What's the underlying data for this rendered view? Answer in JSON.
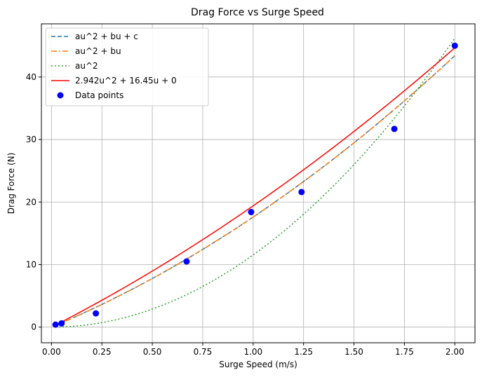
{
  "chart_data": {
    "type": "scatter",
    "title": "Drag Force vs Surge Speed",
    "xlabel": "Surge Speed (m/s)",
    "ylabel": "Drag Force (N)",
    "xlim": [
      -0.05,
      2.1
    ],
    "ylim": [
      -2.5,
      48.5
    ],
    "xticks": [
      0.0,
      0.25,
      0.5,
      0.75,
      1.0,
      1.25,
      1.5,
      1.75,
      2.0
    ],
    "xtick_labels": [
      "0.00",
      "0.25",
      "0.50",
      "0.75",
      "1.00",
      "1.25",
      "1.50",
      "1.75",
      "2.00"
    ],
    "yticks": [
      0,
      10,
      20,
      30,
      40
    ],
    "ytick_labels": [
      "0",
      "10",
      "20",
      "30",
      "40"
    ],
    "grid": true,
    "legend_position": "top-left",
    "points": {
      "name": "Data points",
      "color": "#0000ff",
      "x": [
        0.02,
        0.05,
        0.22,
        0.67,
        0.99,
        1.24,
        1.7,
        2.0
      ],
      "y": [
        0.4,
        0.6,
        2.2,
        10.5,
        18.4,
        21.6,
        31.7,
        45.0
      ]
    },
    "series": [
      {
        "name": "au^2 + bu + c",
        "color": "#1f77b4",
        "dash": "dashed",
        "x_range": [
          0.02,
          2.0
        ],
        "coeffs": [
          4.1,
          13.5,
          0.0
        ]
      },
      {
        "name": "au^2 + bu",
        "color": "#ff7f0e",
        "dash": "dashdot",
        "x_range": [
          0.02,
          2.0
        ],
        "coeffs": [
          4.1,
          13.5,
          0.0
        ]
      },
      {
        "name": "au^2",
        "color": "#2ca02c",
        "dash": "dotted",
        "x_range": [
          0.02,
          2.0
        ],
        "coeffs": [
          11.55,
          0.0,
          0.0
        ]
      },
      {
        "name": "2.942u^2 + 16.45u + 0",
        "color": "#ff0000",
        "dash": "solid",
        "x_range": [
          0.02,
          2.0
        ],
        "coeffs": [
          2.942,
          16.45,
          0.0
        ]
      }
    ]
  }
}
